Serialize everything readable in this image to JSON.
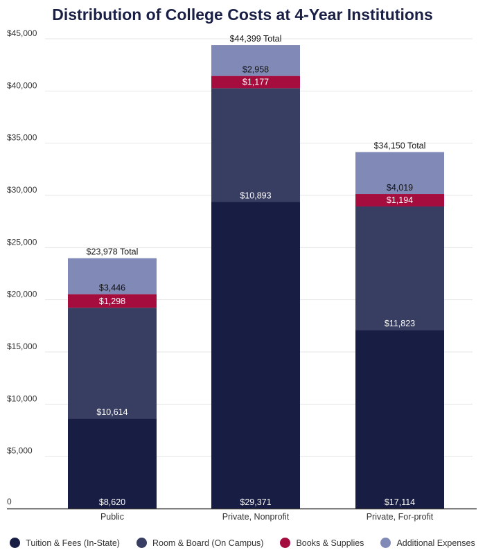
{
  "chart_data": {
    "type": "bar",
    "stacked": true,
    "title": "Distribution of College Costs at 4-Year Institutions",
    "categories": [
      "Public",
      "Private, Nonprofit",
      "Private, For-profit"
    ],
    "series": [
      {
        "name": "Tuition & Fees (In-State)",
        "color": "#181d43",
        "values": [
          8620,
          29371,
          17114
        ]
      },
      {
        "name": "Room & Board (On Campus)",
        "color": "#383e62",
        "values": [
          10614,
          10893,
          11823
        ]
      },
      {
        "name": "Books & Supplies",
        "color": "#a50d3e",
        "values": [
          1298,
          1177,
          1194
        ]
      },
      {
        "name": "Additional Expenses",
        "color": "#8189b7",
        "values": [
          3446,
          2958,
          4019
        ]
      }
    ],
    "segment_labels": [
      [
        "$8,620",
        "$29,371",
        "$17,114"
      ],
      [
        "$10,614",
        "$10,893",
        "$11,823"
      ],
      [
        "$1,298",
        "$1,177",
        "$1,194"
      ],
      [
        "$3,446",
        "$2,958",
        "$4,019"
      ]
    ],
    "totals": [
      23978,
      44399,
      34150
    ],
    "total_labels": [
      "$23,978 Total",
      "$44,399 Total",
      "$34,150 Total"
    ],
    "yticks": [
      0,
      5000,
      10000,
      15000,
      20000,
      25000,
      30000,
      35000,
      40000,
      45000
    ],
    "ytick_labels": [
      "0",
      "$5,000",
      "$10,000",
      "$15,000",
      "$20,000",
      "$25,000",
      "$30,000",
      "$35,000",
      "$40,000",
      "$45,000"
    ],
    "ylim": [
      0,
      45000
    ],
    "xlabel": "",
    "ylabel": "",
    "grid": true,
    "legend_position": "bottom"
  }
}
